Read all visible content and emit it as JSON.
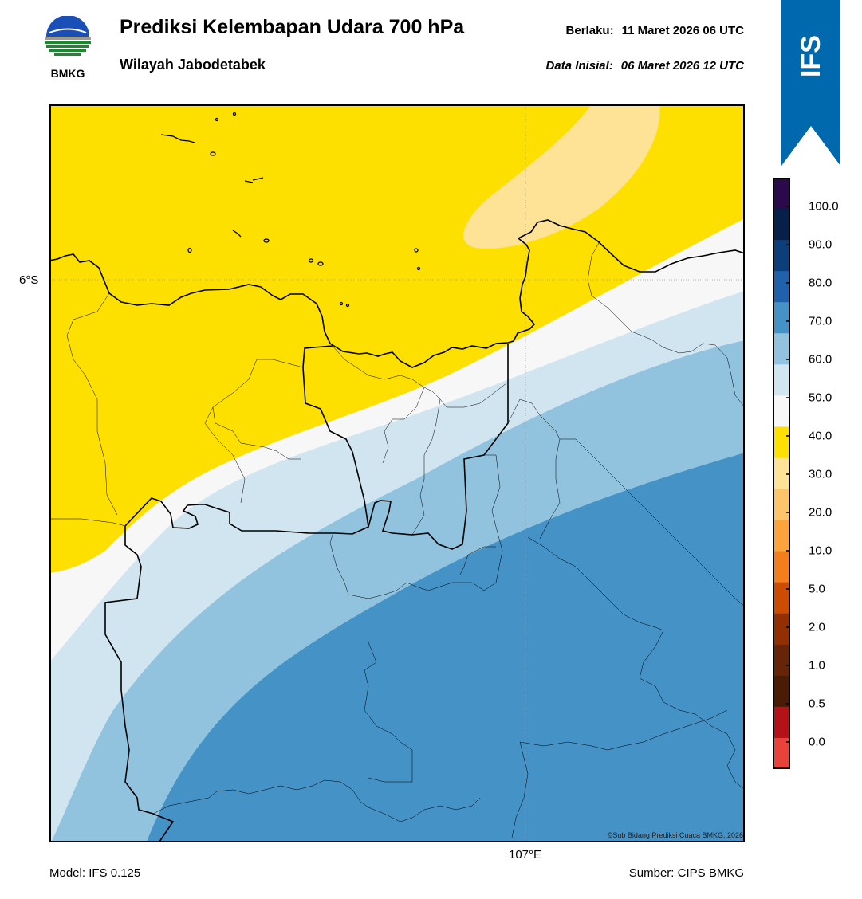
{
  "header": {
    "logo_text": "BMKG",
    "title": "Prediksi Kelembapan Udara 700 hPa",
    "subtitle": "Wilayah Jabodetabek",
    "valid_label": "Berlaku:",
    "valid_value": "11 Maret 2026 06 UTC",
    "init_label": "Data Inisial:",
    "init_value": "06 Maret 2026 12 UTC"
  },
  "banner": {
    "text": "IFS",
    "color": "#0068ad"
  },
  "map": {
    "lat_label": "6°S",
    "lon_label": "107°E",
    "credit": "©Sub Bidang Prediksi Cuaca BMKG, 2026"
  },
  "colorbar": {
    "labels": [
      "100.0",
      "90.0",
      "80.0",
      "70.0",
      "60.0",
      "50.0",
      "40.0",
      "30.0",
      "20.0",
      "10.0",
      "5.0",
      "2.0",
      "1.0",
      "0.5",
      "0.0"
    ],
    "colors": [
      "#2a0a4a",
      "#06204a",
      "#0c3e7a",
      "#1f62ab",
      "#4592c6",
      "#92c3de",
      "#d1e5f1",
      "#f7f7f7",
      "#fde000",
      "#fee396",
      "#fec46a",
      "#fda33c",
      "#f27e1c",
      "#cc4c02",
      "#933003",
      "#662506",
      "#4a1c05",
      "#b31218",
      "#e8423a"
    ],
    "region_colors": {
      "yellow": "#fde000",
      "light_yellow": "#fee396",
      "white": "#f7f7f7",
      "pale_blue": "#d1e5f1",
      "light_blue": "#92c3de",
      "mid_blue": "#4592c6"
    }
  },
  "footer": {
    "model": "Model: IFS 0.125",
    "source": "Sumber: CIPS BMKG"
  }
}
